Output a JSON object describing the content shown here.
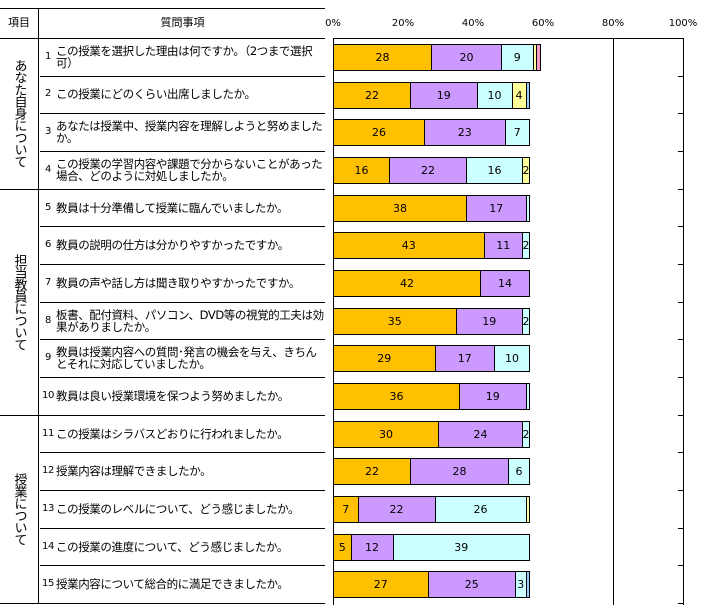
{
  "header": {
    "item_col": "項目",
    "question_col": "質問事項"
  },
  "sections": [
    {
      "label": "あなた自身について",
      "rows": [
        0,
        3
      ]
    },
    {
      "label": "担当教員について",
      "rows": [
        4,
        9
      ]
    },
    {
      "label": "授業について",
      "rows": [
        10,
        14
      ]
    }
  ],
  "questions": [
    {
      "num": "1",
      "text": "この授業を選択した理由は何ですか。（2つまで選択可）"
    },
    {
      "num": "2",
      "text": "この授業にどのくらい出席しましたか。"
    },
    {
      "num": "3",
      "text": "あなたは授業中、授業内容を理解しようと努めましたか。"
    },
    {
      "num": "4",
      "text": "この授業の学習内容や課題で分からないことがあった場合、どのように対処しましたか。"
    },
    {
      "num": "5",
      "text": "教員は十分準備して授業に臨んでいましたか。"
    },
    {
      "num": "6",
      "text": "教員の説明の仕方は分かりやすかったですか。"
    },
    {
      "num": "7",
      "text": "教員の声や話し方は聞き取りやすかったですか。"
    },
    {
      "num": "8",
      "text": "板書、配付資料、パソコン、DVD等の視覚的工夫は効果がありましたか。"
    },
    {
      "num": "9",
      "text": "教員は授業内容への質問･発言の機会を与え、きちんとそれに対応していましたか。"
    },
    {
      "num": "10",
      "text": "教員は良い授業環境を保つよう努めましたか。"
    },
    {
      "num": "11",
      "text": "この授業はシラバスどおりに行われましたか。"
    },
    {
      "num": "12",
      "text": "授業内容は理解できましたか。"
    },
    {
      "num": "13",
      "text": "この授業のレベルについて、どう感じましたか。"
    },
    {
      "num": "14",
      "text": "この授業の進度について、どう感じましたか。"
    },
    {
      "num": "15",
      "text": "授業内容について総合的に満足できましたか。"
    }
  ],
  "chart_data": {
    "type": "bar",
    "orientation": "horizontal",
    "stacked": "percent",
    "xlim": [
      0,
      100
    ],
    "xticks": [
      "0%",
      "20%",
      "40%",
      "60%",
      "80%",
      "100%"
    ],
    "categories": [
      "1",
      "2",
      "3",
      "4",
      "5",
      "6",
      "7",
      "8",
      "9",
      "10",
      "11",
      "12",
      "13",
      "14",
      "15"
    ],
    "series_colors": [
      "#FFC000",
      "#CC99FF",
      "#CCFFFF",
      "#FFFF99",
      "#FF99CC",
      "#99CCFF"
    ],
    "rows": [
      [
        {
          "v": 28,
          "c": 0
        },
        {
          "v": 20,
          "c": 1
        },
        {
          "v": 9,
          "c": 2
        },
        {
          "v": 1,
          "c": 3
        },
        {
          "v": 1,
          "c": 4
        }
      ],
      [
        {
          "v": 22,
          "c": 0
        },
        {
          "v": 19,
          "c": 1
        },
        {
          "v": 10,
          "c": 2
        },
        {
          "v": 4,
          "c": 3
        },
        {
          "v": 1,
          "c": 5
        }
      ],
      [
        {
          "v": 26,
          "c": 0
        },
        {
          "v": 23,
          "c": 1
        },
        {
          "v": 7,
          "c": 2
        }
      ],
      [
        {
          "v": 16,
          "c": 0
        },
        {
          "v": 22,
          "c": 1
        },
        {
          "v": 16,
          "c": 2
        },
        {
          "v": 2,
          "c": 3
        }
      ],
      [
        {
          "v": 38,
          "c": 0
        },
        {
          "v": 17,
          "c": 1
        },
        {
          "v": 1,
          "c": 2
        }
      ],
      [
        {
          "v": 43,
          "c": 0
        },
        {
          "v": 11,
          "c": 1
        },
        {
          "v": 2,
          "c": 2
        }
      ],
      [
        {
          "v": 42,
          "c": 0
        },
        {
          "v": 14,
          "c": 1
        }
      ],
      [
        {
          "v": 35,
          "c": 0
        },
        {
          "v": 19,
          "c": 1
        },
        {
          "v": 2,
          "c": 2
        }
      ],
      [
        {
          "v": 29,
          "c": 0
        },
        {
          "v": 17,
          "c": 1
        },
        {
          "v": 10,
          "c": 2
        }
      ],
      [
        {
          "v": 36,
          "c": 0
        },
        {
          "v": 19,
          "c": 1
        },
        {
          "v": 1,
          "c": 2
        }
      ],
      [
        {
          "v": 30,
          "c": 0
        },
        {
          "v": 24,
          "c": 1
        },
        {
          "v": 2,
          "c": 2
        }
      ],
      [
        {
          "v": 22,
          "c": 0
        },
        {
          "v": 28,
          "c": 1
        },
        {
          "v": 6,
          "c": 2
        }
      ],
      [
        {
          "v": 7,
          "c": 0
        },
        {
          "v": 22,
          "c": 1
        },
        {
          "v": 26,
          "c": 2
        },
        {
          "v": 1,
          "c": 3
        }
      ],
      [
        {
          "v": 5,
          "c": 0
        },
        {
          "v": 12,
          "c": 1
        },
        {
          "v": 39,
          "c": 2
        }
      ],
      [
        {
          "v": 27,
          "c": 0
        },
        {
          "v": 25,
          "c": 1
        },
        {
          "v": 3,
          "c": 2
        },
        {
          "v": 1,
          "c": 5
        }
      ]
    ]
  }
}
